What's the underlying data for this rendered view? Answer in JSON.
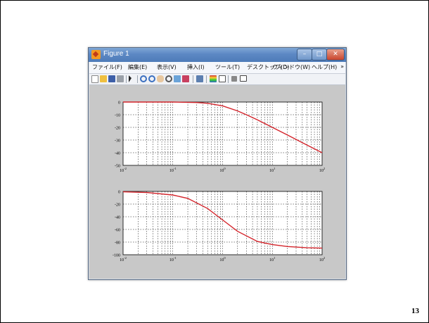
{
  "window": {
    "title": "Figure 1",
    "controls": {
      "minimize": "–",
      "maximize": "□",
      "close": "✕"
    }
  },
  "menubar": {
    "items": [
      "ファイル(F)",
      "編集(E)",
      "表示(V)",
      "挿入(I)",
      "ツール(T)",
      "デスクトップ(D)",
      "ウィンドウ(W)",
      "ヘルプ(H)"
    ],
    "more": "»"
  },
  "toolbar": {
    "tools": [
      "new-figure",
      "open-file",
      "save",
      "print",
      "edit-plot",
      "zoom-in",
      "zoom-out",
      "pan",
      "rotate-3d",
      "data-cursor",
      "brush",
      "link-plot",
      "insert-colorbar",
      "insert-legend",
      "hide-plot-tools",
      "show-plot-tools"
    ]
  },
  "slide": {
    "number": "13"
  },
  "colors": {
    "curve": "#d4242b",
    "figure_bg": "#c8c8c8",
    "axes_bg": "#ffffff"
  },
  "chart_data": [
    {
      "type": "line",
      "title": "",
      "xlabel": "",
      "ylabel": "",
      "xscale": "log",
      "xlim": [
        0.01,
        100
      ],
      "ylim": [
        -50,
        0
      ],
      "xticks": [
        "10^-2",
        "10^-1",
        "10^0",
        "10^1",
        "10^2"
      ],
      "yticks": [
        "0",
        "-10",
        "-20",
        "-30",
        "-40",
        "-50"
      ],
      "grid": true,
      "series": [
        {
          "x": [
            0.01,
            0.1,
            0.3,
            0.5,
            1,
            2,
            3,
            5,
            10,
            20,
            50,
            100
          ],
          "y": [
            0,
            0,
            -0.4,
            -1,
            -3,
            -7,
            -10,
            -14,
            -20,
            -26,
            -34,
            -40
          ]
        }
      ]
    },
    {
      "type": "line",
      "title": "",
      "xlabel": "",
      "ylabel": "",
      "xscale": "log",
      "xlim": [
        0.01,
        100
      ],
      "ylim": [
        -100,
        0
      ],
      "xticks": [
        "10^-2",
        "10^-1",
        "10^0",
        "10^1",
        "10^2"
      ],
      "yticks": [
        "0",
        "-20",
        "-40",
        "-60",
        "-80",
        "-100"
      ],
      "grid": true,
      "series": [
        {
          "x": [
            0.01,
            0.03,
            0.1,
            0.2,
            0.5,
            1,
            2,
            5,
            10,
            20,
            50,
            100
          ],
          "y": [
            -0.6,
            -1.7,
            -5.7,
            -11,
            -27,
            -45,
            -63,
            -79,
            -84,
            -87,
            -89,
            -89.5
          ]
        }
      ]
    }
  ]
}
